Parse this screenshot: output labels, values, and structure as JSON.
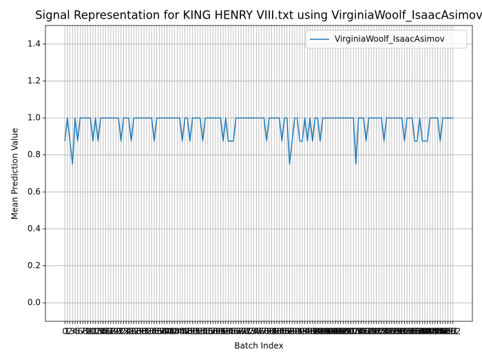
{
  "chart_data": {
    "type": "line",
    "title": "Signal Representation for KING HENRY VIII.txt using VirginiaWoolf_IsaacAsimov",
    "x_label": "Batch Index",
    "y_label": "Mean Prediction Value",
    "categories": [
      "0",
      "1",
      "2",
      "3",
      "4",
      "5",
      "6",
      "7",
      "8",
      "9",
      "10",
      "11",
      "12",
      "13",
      "14",
      "15",
      "16",
      "17",
      "18",
      "19",
      "20",
      "21",
      "22",
      "23",
      "24",
      "25",
      "26",
      "27",
      "28",
      "29",
      "30",
      "31",
      "32",
      "33",
      "34",
      "35",
      "36",
      "37",
      "38",
      "39",
      "40",
      "41",
      "42",
      "43",
      "44",
      "45",
      "46",
      "47",
      "48",
      "49",
      "50",
      "51",
      "52",
      "53",
      "54",
      "55",
      "56",
      "57",
      "58",
      "59",
      "60",
      "61",
      "62",
      "63",
      "64",
      "65",
      "66",
      "67",
      "68",
      "69",
      "70",
      "71",
      "72",
      "73",
      "74",
      "75",
      "76",
      "77",
      "78",
      "79",
      "80",
      "81",
      "82",
      "83",
      "84",
      "85",
      "86",
      "87",
      "88",
      "89",
      "90",
      "91",
      "92",
      "93",
      "94",
      "95",
      "96",
      "97",
      "98",
      "99",
      "100",
      "101",
      "102",
      "103",
      "104",
      "105",
      "106",
      "107",
      "108",
      "109",
      "110",
      "111",
      "112",
      "113",
      "114",
      "115",
      "116",
      "117",
      "118",
      "119",
      "120",
      "121",
      "122",
      "123",
      "124",
      "125",
      "126",
      "127",
      "128",
      "129",
      "130",
      "131",
      "132",
      "133",
      "134",
      "135",
      "136",
      "137",
      "138",
      "139",
      "140",
      "141",
      "142",
      "143",
      "144",
      "145",
      "146",
      "147",
      "148",
      "149",
      "150",
      "151",
      "152"
    ],
    "series": [
      {
        "name": "VirginiaWoolf_IsaacAsimov",
        "color": "#1f77b4",
        "values": [
          0.875,
          1,
          0.875,
          0.75,
          1,
          0.875,
          1,
          1,
          1,
          1,
          1,
          0.875,
          1,
          0.875,
          1,
          1,
          1,
          1,
          1,
          1,
          1,
          1,
          0.875,
          1,
          1,
          1,
          0.875,
          1,
          1,
          1,
          1,
          1,
          1,
          1,
          1,
          0.875,
          1,
          1,
          1,
          1,
          1,
          1,
          1,
          1,
          1,
          1,
          0.875,
          1,
          1,
          0.875,
          1,
          1,
          1,
          1,
          0.875,
          1,
          1,
          1,
          1,
          1,
          1,
          1,
          0.875,
          1,
          0.875,
          0.875,
          0.875,
          1,
          1,
          1,
          1,
          1,
          1,
          1,
          1,
          1,
          1,
          1,
          1,
          0.875,
          1,
          1,
          1,
          1,
          1,
          0.875,
          1,
          1,
          0.75,
          0.875,
          1,
          1,
          0.875,
          0.875,
          1,
          0.875,
          1,
          0.875,
          1,
          1,
          0.875,
          1,
          1,
          1,
          1,
          1,
          1,
          1,
          1,
          1,
          1,
          1,
          1,
          1,
          0.75,
          1,
          1,
          1,
          0.875,
          1,
          1,
          1,
          1,
          1,
          1,
          0.875,
          1,
          1,
          1,
          1,
          1,
          1,
          1,
          0.875,
          1,
          1,
          1,
          0.875,
          0.875,
          1,
          0.875,
          0.875,
          0.875,
          1,
          1,
          1,
          1,
          0.875,
          1,
          1,
          1,
          1,
          1
        ]
      }
    ],
    "ylim": [
      -0.1,
      1.5
    ],
    "yticks": [
      {
        "value": 0,
        "label": "0.0"
      },
      0.2,
      0.4,
      0.6,
      0.8,
      {
        "value": 1,
        "label": "1.0"
      },
      1.2,
      1.4
    ],
    "grid": true,
    "legend": "upper right"
  }
}
